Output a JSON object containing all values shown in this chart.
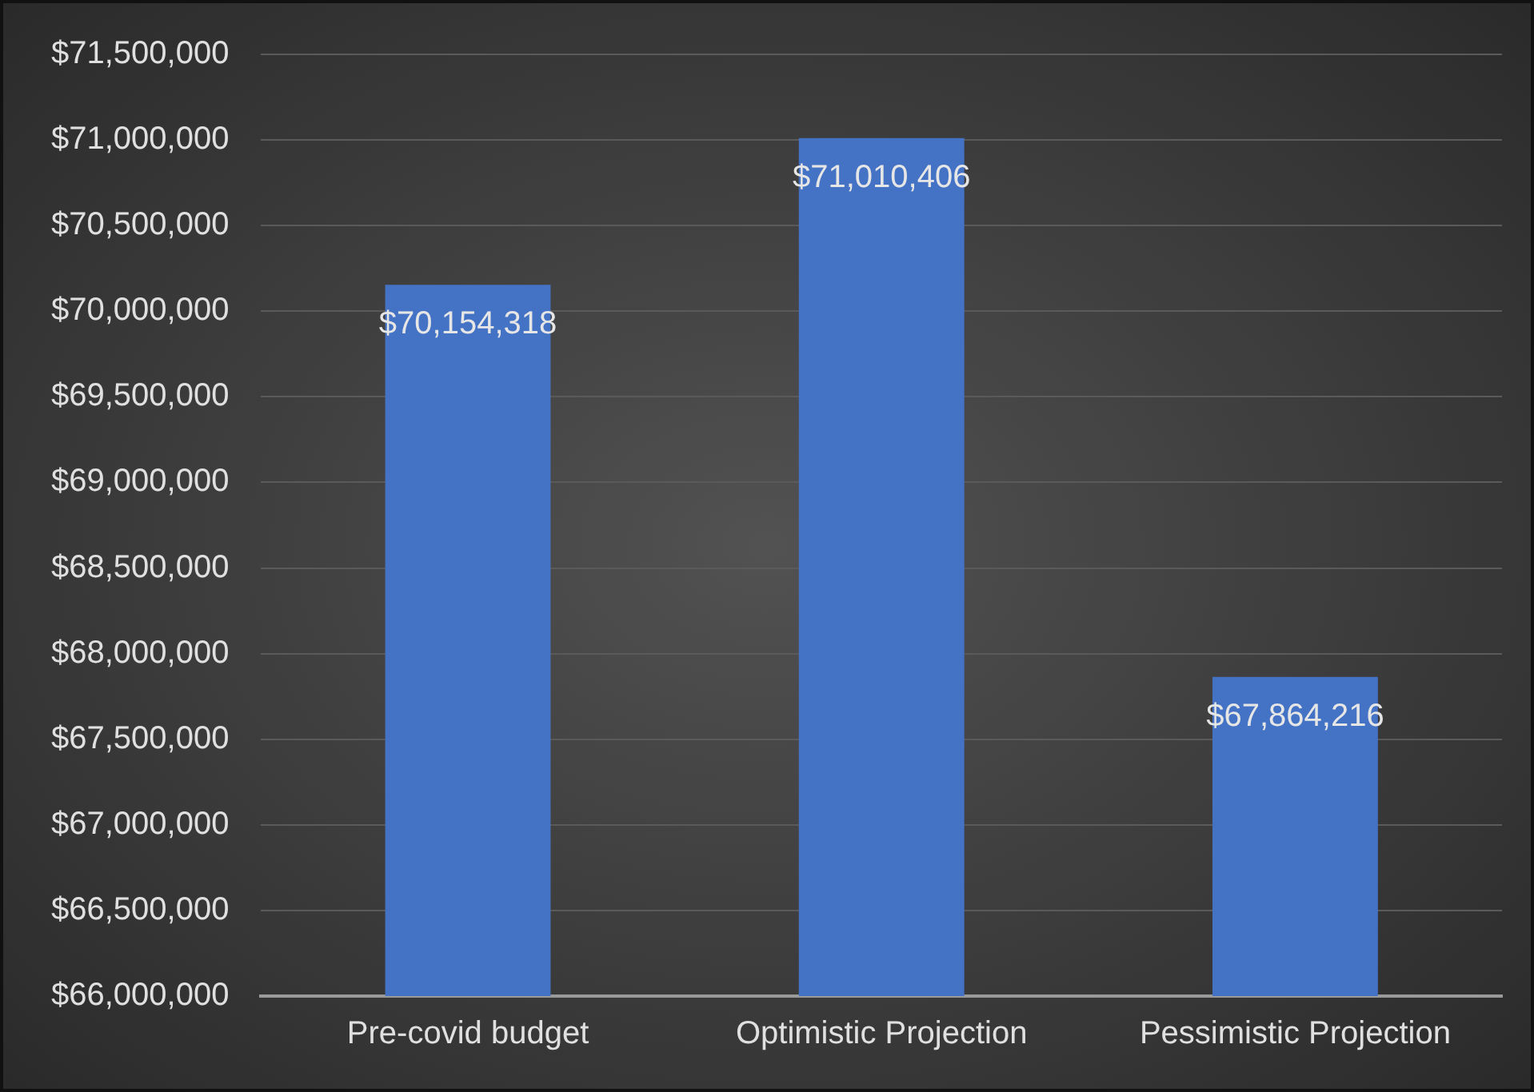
{
  "chart_data": {
    "type": "bar",
    "categories": [
      "Pre-covid budget",
      "Optimistic Projection",
      "Pessimistic Projection"
    ],
    "values": [
      70154318,
      71010406,
      67864216
    ],
    "value_labels": [
      "$70,154,318",
      "$71,010,406",
      "$67,864,216"
    ],
    "color": "#4472c4",
    "ylim": [
      66000000,
      71500000
    ],
    "yticks": [
      {
        "value": 66000000,
        "label": "$66,000,000"
      },
      {
        "value": 66500000,
        "label": "$66,500,000"
      },
      {
        "value": 67000000,
        "label": "$67,000,000"
      },
      {
        "value": 67500000,
        "label": "$67,500,000"
      },
      {
        "value": 68000000,
        "label": "$68,000,000"
      },
      {
        "value": 68500000,
        "label": "$68,500,000"
      },
      {
        "value": 69000000,
        "label": "$69,000,000"
      },
      {
        "value": 69500000,
        "label": "$69,500,000"
      },
      {
        "value": 70000000,
        "label": "$70,000,000"
      },
      {
        "value": 70500000,
        "label": "$70,500,000"
      },
      {
        "value": 71000000,
        "label": "$71,000,000"
      },
      {
        "value": 71500000,
        "label": "$71,500,000"
      }
    ],
    "grid": "y",
    "legend": false
  }
}
